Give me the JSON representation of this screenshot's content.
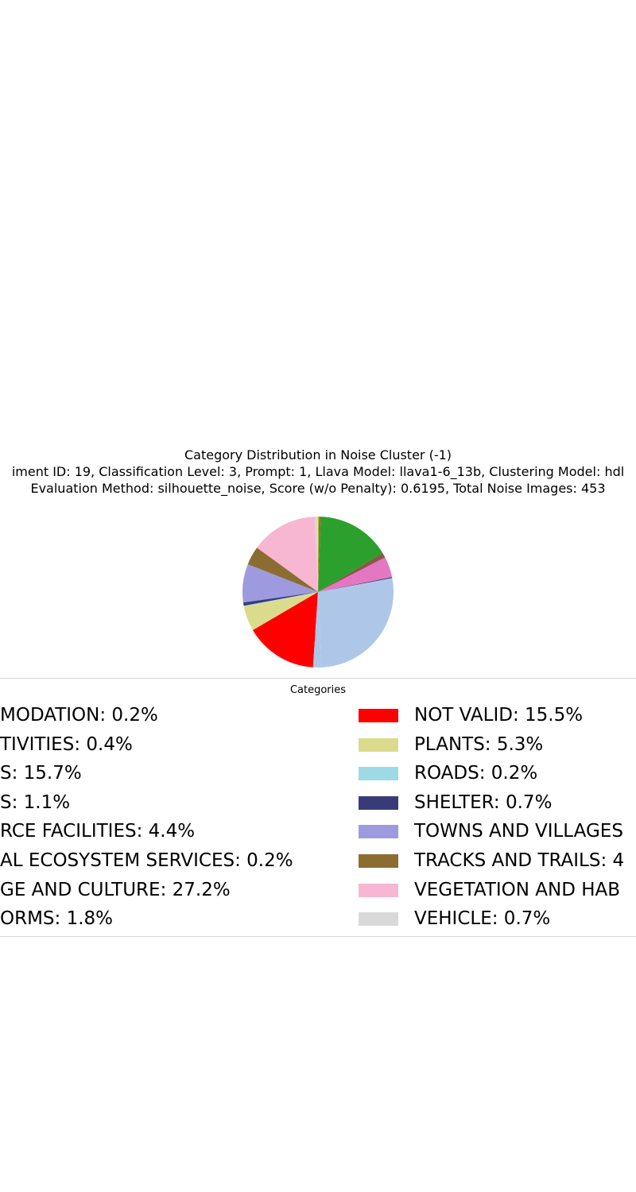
{
  "chart_data": {
    "type": "pie",
    "title": [
      "Category Distribution in Noise Cluster (-1)",
      "iment ID: 19, Classification Level: 3, Prompt: 1, Llava Model: llava1-6_13b, Clustering Model: hdl",
      "Evaluation Method: silhouette_noise, Score (w/o Penalty): 0.6195, Total Noise Images: 453"
    ],
    "legend_title": "Categories",
    "legend_placement": "bottom",
    "slices": [
      {
        "label": "VEHICLE",
        "value": 0.7,
        "color": "#d9d9d9"
      },
      {
        "label": "VEGETATION AND HABITATS",
        "value": 14.3,
        "color": "#f7b6d2"
      },
      {
        "label": "TRACKS AND TRAILS",
        "value": 4.0,
        "color": "#8c6d31"
      },
      {
        "label": "TOWNS AND VILLAGES",
        "value": 8.2,
        "color": "#9e9ae0"
      },
      {
        "label": "SHELTER",
        "value": 0.7,
        "color": "#393b79"
      },
      {
        "label": "ROADS",
        "value": 0.2,
        "color": "#9edae5"
      },
      {
        "label": "PLANTS",
        "value": 5.3,
        "color": "#dbdb8d"
      },
      {
        "label": "NOT VALID",
        "value": 15.5,
        "color": "#ff0000"
      },
      {
        "label": "LANDFORMS",
        "value": 1.8,
        "color": "#aec7e8"
      },
      {
        "label": "HERITAGE AND CULTURE",
        "value": 27.2,
        "color": "#aec7e8"
      },
      {
        "label": "CULTURAL ECOSYSTEM SERVICES",
        "value": 0.2,
        "color": "#393b79"
      },
      {
        "label": "RESOURCE FACILITIES",
        "value": 4.4,
        "color": "#e377c2"
      },
      {
        "label": "BUILDINGS",
        "value": 1.1,
        "color": "#8c564b"
      },
      {
        "label": "ANIMALS",
        "value": 15.7,
        "color": "#2ca02c"
      },
      {
        "label": "ACTIVITIES",
        "value": 0.4,
        "color": "#8c6d31"
      },
      {
        "label": "ACCOMMODATION",
        "value": 0.2,
        "color": "#bcbd22"
      }
    ],
    "legend": {
      "left": [
        {
          "text": "MODATION: 0.2%",
          "color": ""
        },
        {
          "text": "TIVITIES: 0.4%",
          "color": ""
        },
        {
          "text": "S: 15.7%",
          "color": ""
        },
        {
          "text": "S: 1.1%",
          "color": ""
        },
        {
          "text": "RCE FACILITIES: 4.4%",
          "color": ""
        },
        {
          "text": "AL ECOSYSTEM SERVICES: 0.2%",
          "color": ""
        },
        {
          "text": "GE AND CULTURE: 27.2%",
          "color": ""
        },
        {
          "text": "ORMS: 1.8%",
          "color": ""
        }
      ],
      "right": [
        {
          "text": "NOT VALID: 15.5%",
          "color": "#ff0000"
        },
        {
          "text": "PLANTS: 5.3%",
          "color": "#dbdb8d"
        },
        {
          "text": "ROADS: 0.2%",
          "color": "#9edae5"
        },
        {
          "text": "SHELTER: 0.7%",
          "color": "#393b79"
        },
        {
          "text": "TOWNS AND VILLAGES",
          "color": "#9e9ae0"
        },
        {
          "text": "TRACKS AND TRAILS: 4",
          "color": "#8c6d31"
        },
        {
          "text": "VEGETATION AND HAB",
          "color": "#f7b6d2"
        },
        {
          "text": "VEHICLE: 0.7%",
          "color": "#d9d9d9"
        }
      ]
    }
  }
}
